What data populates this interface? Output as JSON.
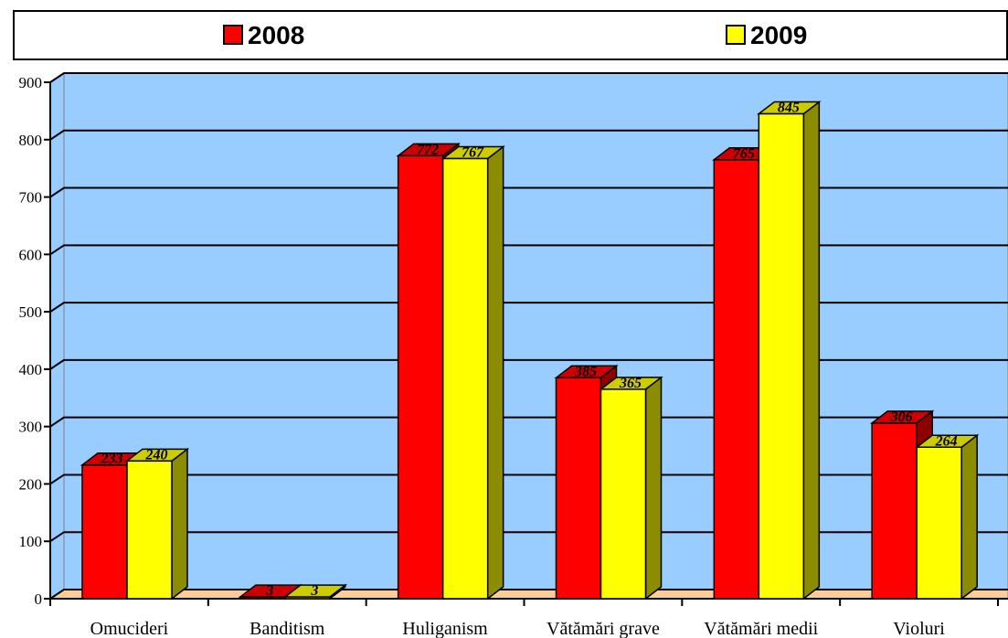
{
  "chart_data": {
    "type": "bar",
    "categories": [
      "Omucideri",
      "Banditism",
      "Huliganism",
      "Vătămări grave",
      "Vătămări medii",
      "Violuri"
    ],
    "series": [
      {
        "name": "2008",
        "color": "#ff0000",
        "values": [
          233,
          3,
          772,
          385,
          765,
          306
        ]
      },
      {
        "name": "2009",
        "color": "#ffff00",
        "values": [
          240,
          3,
          767,
          365,
          845,
          264
        ]
      }
    ],
    "ylim": [
      0,
      900
    ],
    "yticks": [
      0,
      100,
      200,
      300,
      400,
      500,
      600,
      700,
      800,
      900
    ],
    "grid": true,
    "legend": "top"
  }
}
